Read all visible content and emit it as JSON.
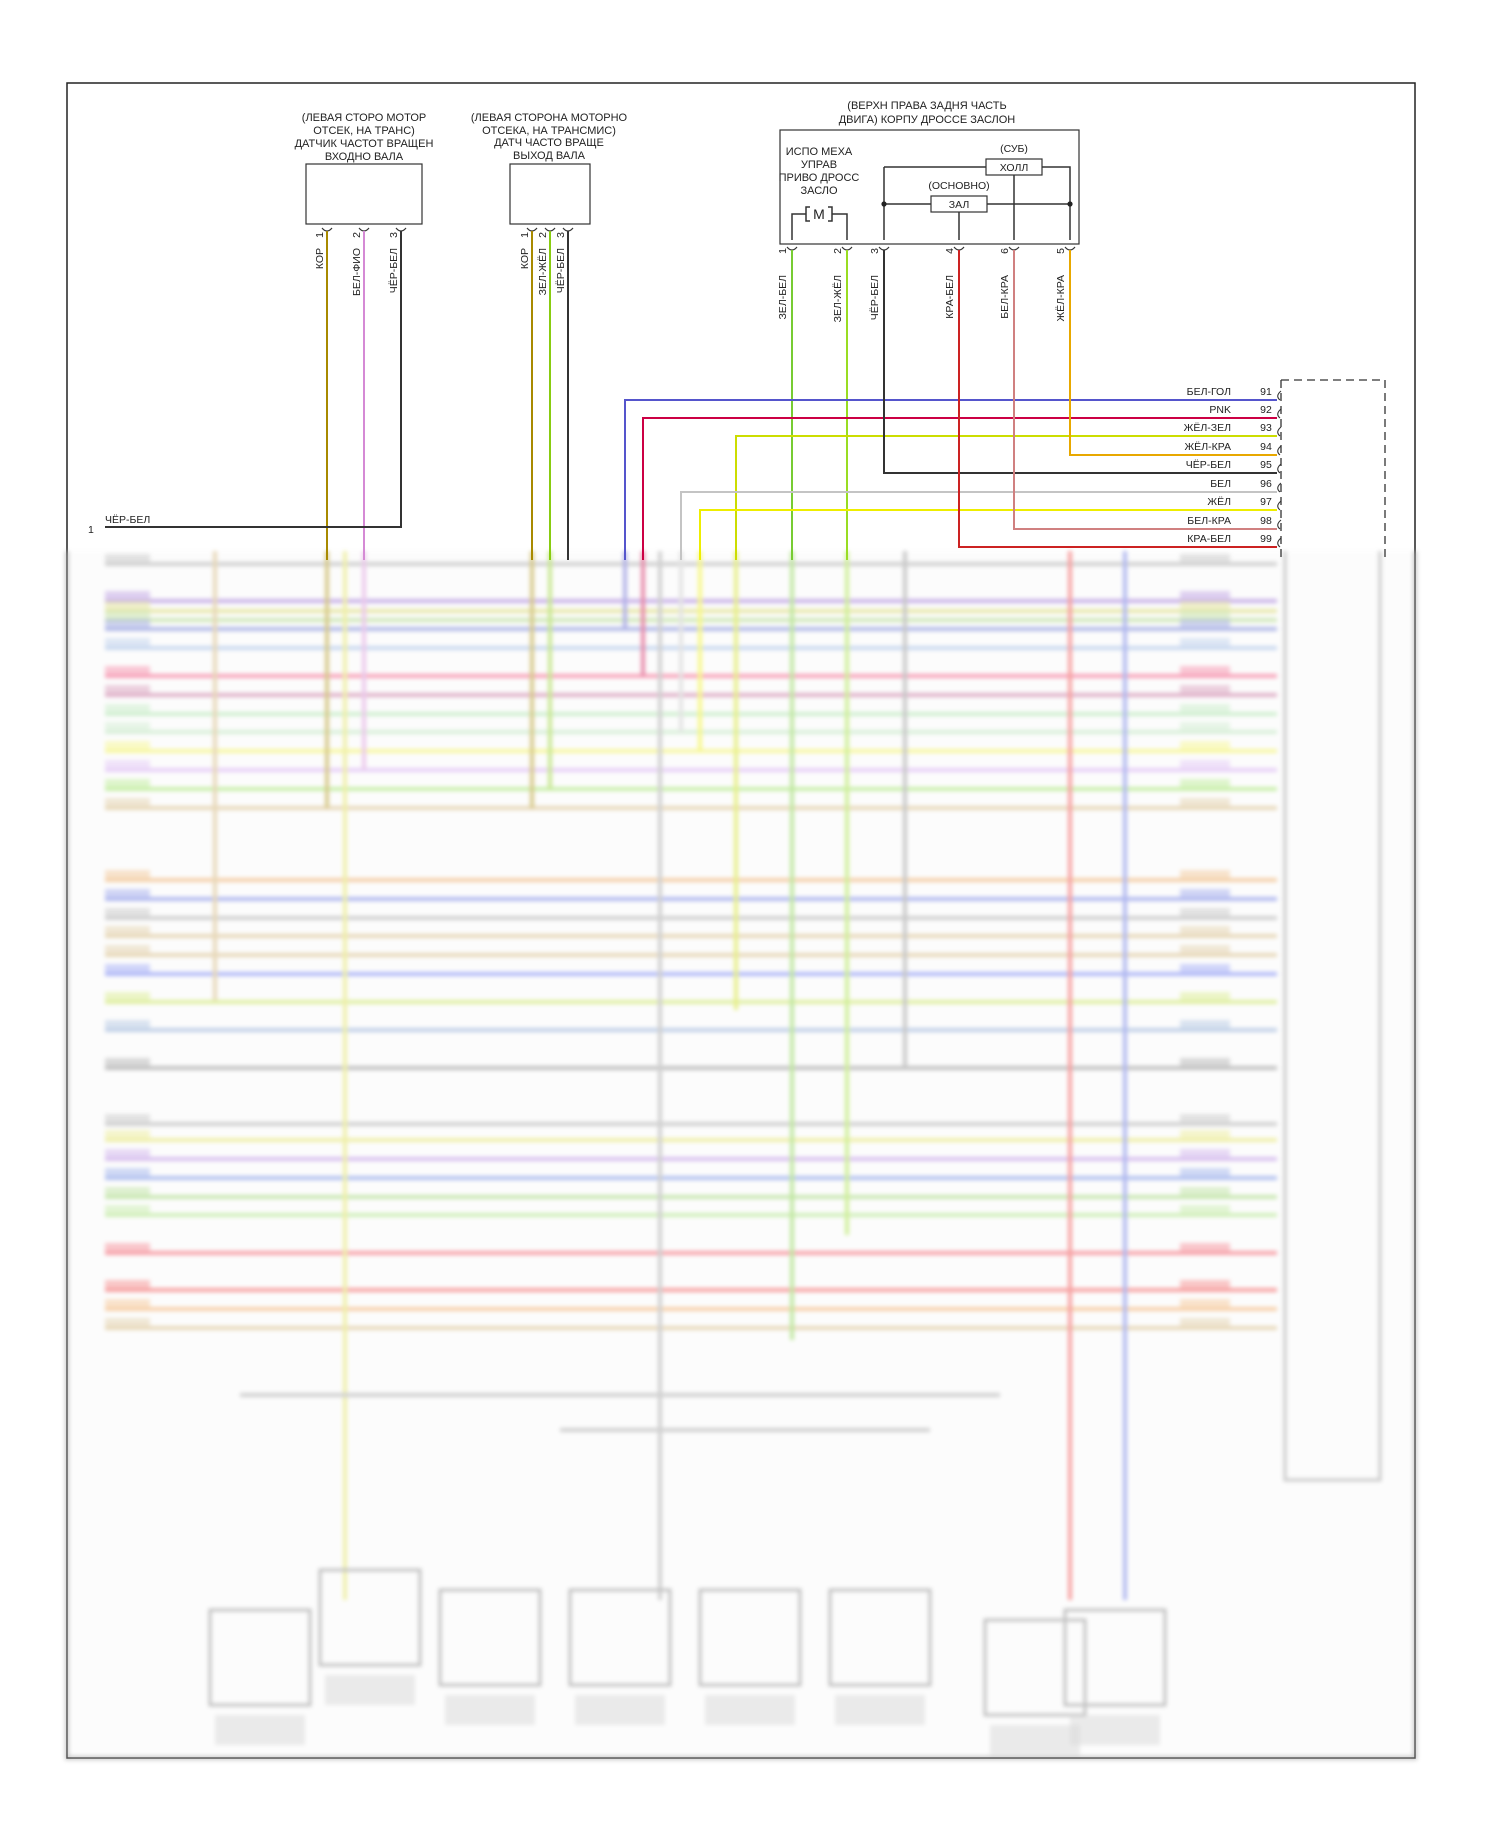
{
  "diagram": {
    "sensor_input": {
      "label_lines": [
        "(ЛЕВАЯ СТОРО МОТОР",
        "ОТСЕК, НА ТРАНС)",
        "ДАТЧИК ЧАСТОТ ВРАЩЕН",
        "ВХОДНО ВАЛА"
      ],
      "pins": [
        {
          "num": "1",
          "wire": "КОР",
          "color": "#a88a00"
        },
        {
          "num": "2",
          "wire": "БЕЛ-ФИО",
          "color": "#d58ad5"
        },
        {
          "num": "3",
          "wire": "ЧЁР-БЕЛ",
          "color": "#333333"
        }
      ]
    },
    "sensor_output": {
      "label_lines": [
        "(ЛЕВАЯ СТОРОНА МОТОРНО",
        "ОТСЕКА, НА ТРАНСМИС)",
        "ДАТЧ ЧАСТО ВРАЩЕ",
        "ВЫХОД ВАЛА"
      ],
      "pins": [
        {
          "num": "1",
          "wire": "КОР",
          "color": "#a88a00"
        },
        {
          "num": "2",
          "wire": "ЗЕЛ-ЖЁЛ",
          "color": "#88cc11"
        },
        {
          "num": "3",
          "wire": "ЧЁР-БЕЛ",
          "color": "#333333"
        }
      ]
    },
    "throttle_body": {
      "label_lines": [
        "(ВЕРХН ПРАВА ЗАДНЯ ЧАСТЬ",
        "ДВИГА) КОРПУ ДРОССЕ ЗАСЛОН"
      ],
      "actuator_lines": [
        "ИСПО МЕХА",
        "УПРАВ",
        "ПРИВО ДРОСС",
        "ЗАСЛО"
      ],
      "motor": "M",
      "hall_sub_label": "(СУБ)",
      "hall_sub": "ХОЛЛ",
      "hall_main_label": "(ОСНОВНО)",
      "hall_main": "ЗАЛ",
      "pins": [
        {
          "num": "1",
          "wire": "ЗЕЛ-БЕЛ",
          "color": "#77cc33"
        },
        {
          "num": "2",
          "wire": "ЗЕЛ-ЖЁЛ",
          "color": "#99dd22"
        },
        {
          "num": "3",
          "wire": "ЧЁР-БЕЛ",
          "color": "#333333"
        },
        {
          "num": "4",
          "wire": "КРА-БЕЛ",
          "color": "#cc2222"
        },
        {
          "num": "6",
          "wire": "БЕЛ-КРА",
          "color": "#d08080"
        },
        {
          "num": "5",
          "wire": "ЖЁЛ-КРА",
          "color": "#e8a800"
        }
      ]
    },
    "ground": {
      "pin": "1",
      "wire": "ЧЁР-БЕЛ"
    },
    "ecu_connector": [
      {
        "pin": "91",
        "wire": "БЕЛ-ГОЛ",
        "color": "#5555cc"
      },
      {
        "pin": "92",
        "wire": "PNK",
        "color": "#cc0044"
      },
      {
        "pin": "93",
        "wire": "ЖЁЛ-ЗЕЛ",
        "color": "#ccdd00"
      },
      {
        "pin": "94",
        "wire": "ЖЁЛ-КРА",
        "color": "#e8a800"
      },
      {
        "pin": "95",
        "wire": "ЧЁР-БЕЛ",
        "color": "#333333"
      },
      {
        "pin": "96",
        "wire": "БЕЛ",
        "color": "#c4c4c4"
      },
      {
        "pin": "97",
        "wire": "ЖЁЛ",
        "color": "#eeee00"
      },
      {
        "pin": "98",
        "wire": "БЕЛ-КРА",
        "color": "#d08080"
      },
      {
        "pin": "99",
        "wire": "КРА-БЕЛ",
        "color": "#cc2222"
      }
    ]
  }
}
